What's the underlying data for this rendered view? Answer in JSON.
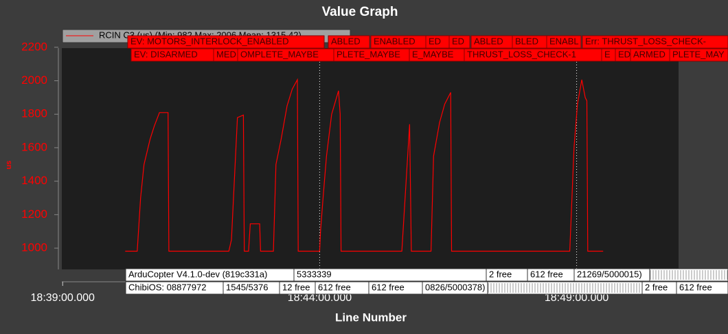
{
  "chart_data": {
    "type": "line",
    "title": "Value Graph",
    "y_label": "us",
    "x_label": "Line Number",
    "x": [
      "18:40:13",
      "18:40:27",
      "18:40:31",
      "18:40:35",
      "18:40:42",
      "18:40:47",
      "18:40:53",
      "18:41:03",
      "18:41:04",
      "18:42:14",
      "18:42:17",
      "18:42:24",
      "18:42:31",
      "18:42:32",
      "18:42:37",
      "18:42:39",
      "18:42:50",
      "18:42:51",
      "18:43:06",
      "18:43:09",
      "18:43:15",
      "18:43:22",
      "18:43:28",
      "18:43:34",
      "18:43:35",
      "18:44:00",
      "18:44:01",
      "18:44:04",
      "18:44:08",
      "18:44:14",
      "18:44:18",
      "18:44:22",
      "18:44:24",
      "18:44:25",
      "18:45:36",
      "18:45:45",
      "18:45:47",
      "18:46:10",
      "18:46:13",
      "18:46:20",
      "18:46:26",
      "18:46:33",
      "18:46:34",
      "18:48:52",
      "18:48:57",
      "18:49:01",
      "18:49:06",
      "18:49:10",
      "18:49:12",
      "18:49:13",
      "18:49:31"
    ],
    "series": [
      {
        "name": "RCIN C3 (us) (Min: 982 Max: 2006 Mean: 1315.42)",
        "color": "#ff0000",
        "values": [
          982,
          982,
          1300,
          1500,
          1650,
          1730,
          1810,
          1810,
          982,
          982,
          1050,
          1780,
          1795,
          982,
          982,
          1145,
          1145,
          982,
          982,
          1500,
          1650,
          1850,
          1950,
          2006,
          982,
          982,
          1100,
          1300,
          1550,
          1800,
          1870,
          1940,
          1800,
          982,
          982,
          1740,
          982,
          982,
          1550,
          1750,
          1860,
          1930,
          982,
          982,
          1600,
          1860,
          2006,
          1900,
          1880,
          982,
          982
        ]
      }
    ],
    "xlim": [
      "18:38:59",
      "18:50:59"
    ],
    "xticks": [
      "18:39:00.000",
      "18:44:00.000",
      "18:49:00.000"
    ],
    "ylim": [
      873,
      2195
    ],
    "yticks": [
      1000,
      1200,
      1400,
      1600,
      1800,
      2000,
      2200
    ],
    "event_lines": [
      "18:44:00",
      "18:49:00"
    ],
    "top_annotations": [
      [
        "EV: MOTORS_INTERLOCK_ENABLED",
        "ABLED",
        "ENABLED",
        "ED",
        "ED",
        "ABLED",
        "BLED",
        "ENABL",
        "Err: THRUST_LOSS_CHECK-"
      ],
      [
        "EV: DISARMED",
        "MED",
        "OMPLETE_MAYBE",
        "PLETE_MAYBE",
        "E_MAYBE",
        "THRUST_LOSS_CHECK-1",
        "E",
        "ED",
        "ARMED",
        "PLETE_MAY"
      ]
    ],
    "bottom_annotations": [
      [
        "ArduCopter V4.1.0-dev (819c331a)",
        "5333339",
        "2 free",
        "612 free",
        "21269/5000015)"
      ],
      [
        "ChibiOS: 08877972",
        "1545/5376",
        "12 free",
        "612 free",
        "612 free",
        "0826/5000378)",
        "2 free",
        "612 free"
      ]
    ]
  }
}
